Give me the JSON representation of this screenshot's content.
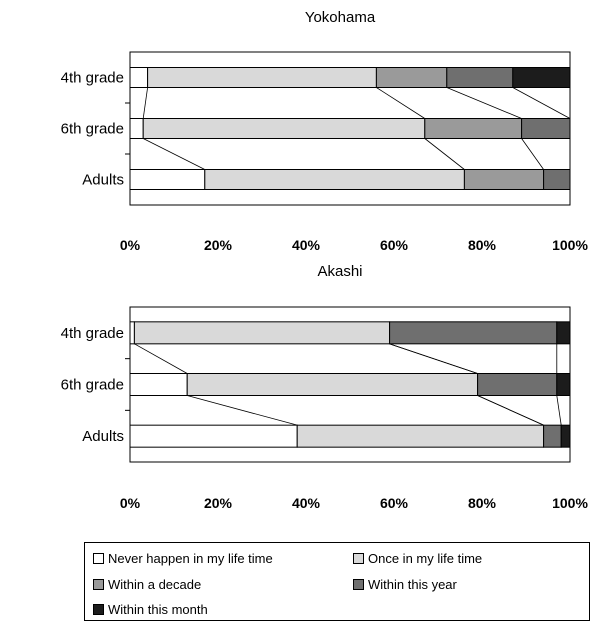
{
  "chart_data": [
    {
      "type": "bar",
      "orientation": "horizontal",
      "stacked": true,
      "percent": true,
      "title": "Yokohama",
      "categories": [
        "4th grade",
        "6th grade",
        "Adults"
      ],
      "series": [
        {
          "name": "Never happen in my life time",
          "values": [
            4,
            3,
            17
          ]
        },
        {
          "name": "Once in my life time",
          "values": [
            52,
            64,
            59
          ]
        },
        {
          "name": "Within a decade",
          "values": [
            16,
            22,
            18
          ]
        },
        {
          "name": "Within this year",
          "values": [
            15,
            11,
            6
          ]
        },
        {
          "name": "Within this month",
          "values": [
            13,
            0,
            0
          ]
        }
      ],
      "xticks": [
        "0%",
        "20%",
        "40%",
        "60%",
        "80%",
        "100%"
      ],
      "xlim": [
        0,
        100
      ]
    },
    {
      "type": "bar",
      "orientation": "horizontal",
      "stacked": true,
      "percent": true,
      "title": "Akashi",
      "categories": [
        "4th grade",
        "6th grade",
        "Adults"
      ],
      "series": [
        {
          "name": "Never happen in my life time",
          "values": [
            1,
            13,
            38
          ]
        },
        {
          "name": "Once in my life time",
          "values": [
            58,
            66,
            56
          ]
        },
        {
          "name": "Within a decade",
          "values": [
            0,
            0,
            0
          ]
        },
        {
          "name": "Within this year",
          "values": [
            38,
            18,
            4
          ]
        },
        {
          "name": "Within this month",
          "values": [
            3,
            3,
            2
          ]
        }
      ],
      "xticks": [
        "0%",
        "20%",
        "40%",
        "60%",
        "80%",
        "100%"
      ],
      "xlim": [
        0,
        100
      ]
    }
  ],
  "legend": {
    "items": [
      "Never happen in my life time",
      "Once in my life time",
      "Within a decade",
      "Within this year",
      "Within this month"
    ]
  },
  "colors": {
    "never": "#ffffff",
    "once": "#d9d9d9",
    "decade": "#9a9a9a",
    "year": "#6f6f6f",
    "month": "#1c1c1c"
  }
}
